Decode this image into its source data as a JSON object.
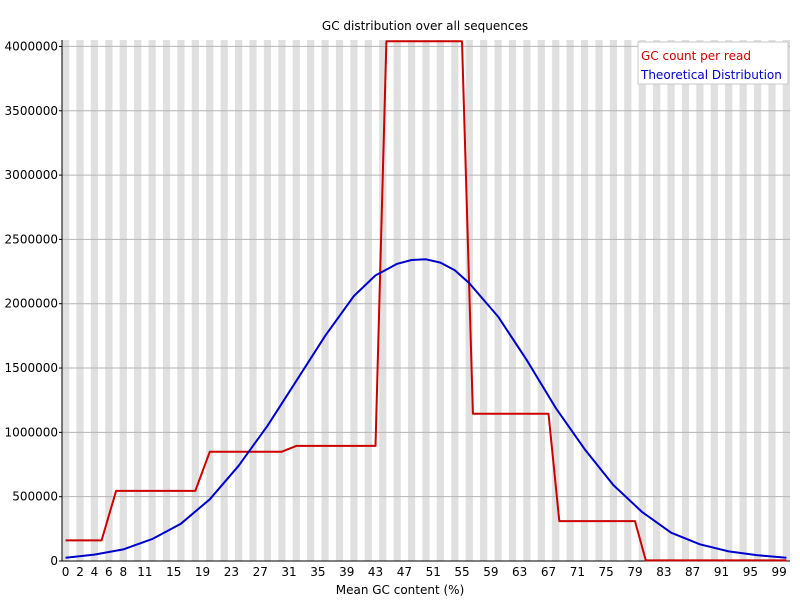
{
  "chart_data": {
    "type": "line",
    "title": "GC distribution over all sequences",
    "xlabel": "Mean GC content (%)",
    "ylabel": "",
    "xlim": [
      0,
      101
    ],
    "ylim": [
      0,
      4050000
    ],
    "x_ticks": [
      "0",
      "2",
      "4",
      "6",
      "8",
      "11",
      "15",
      "19",
      "23",
      "27",
      "31",
      "35",
      "39",
      "43",
      "47",
      "51",
      "55",
      "59",
      "63",
      "67",
      "71",
      "75",
      "79",
      "83",
      "87",
      "91",
      "95",
      "99"
    ],
    "y_ticks": [
      "0",
      "500000",
      "1000000",
      "1500000",
      "2000000",
      "2500000",
      "3000000",
      "3500000",
      "4000000"
    ],
    "grid": true,
    "legend_position": "top-right",
    "series": [
      {
        "name": "GC count per read",
        "color": "#cc0000",
        "points": [
          [
            0,
            160000
          ],
          [
            5,
            160000
          ],
          [
            7,
            545000
          ],
          [
            18,
            545000
          ],
          [
            20,
            850000
          ],
          [
            30,
            850000
          ],
          [
            32,
            895000
          ],
          [
            43,
            895000
          ],
          [
            44.5,
            4040000
          ],
          [
            55,
            4040000
          ],
          [
            56.5,
            1145000
          ],
          [
            67,
            1145000
          ],
          [
            68.5,
            310000
          ],
          [
            79,
            310000
          ],
          [
            80.5,
            5000
          ],
          [
            100,
            5000
          ]
        ]
      },
      {
        "name": "Theoretical Distribution",
        "color": "#0000cc",
        "points": [
          [
            0,
            25000
          ],
          [
            4,
            50000
          ],
          [
            8,
            90000
          ],
          [
            12,
            170000
          ],
          [
            16,
            290000
          ],
          [
            20,
            480000
          ],
          [
            24,
            740000
          ],
          [
            28,
            1050000
          ],
          [
            32,
            1400000
          ],
          [
            36,
            1750000
          ],
          [
            40,
            2060000
          ],
          [
            43,
            2220000
          ],
          [
            46,
            2310000
          ],
          [
            48,
            2340000
          ],
          [
            50,
            2345000
          ],
          [
            52,
            2320000
          ],
          [
            54,
            2260000
          ],
          [
            56,
            2160000
          ],
          [
            60,
            1900000
          ],
          [
            64,
            1560000
          ],
          [
            68,
            1190000
          ],
          [
            72,
            870000
          ],
          [
            76,
            590000
          ],
          [
            80,
            380000
          ],
          [
            84,
            220000
          ],
          [
            88,
            130000
          ],
          [
            92,
            75000
          ],
          [
            96,
            45000
          ],
          [
            100,
            25000
          ]
        ]
      }
    ]
  }
}
